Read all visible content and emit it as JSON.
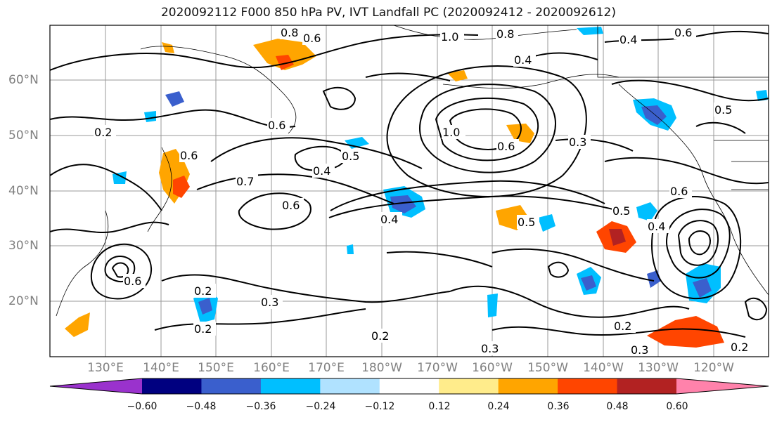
{
  "title": "2020092112 F000 850 hPa PV, IVT Landfall PC (2020092412 - 2020092612)",
  "lat_labels": [
    "60°N",
    "50°N",
    "40°N",
    "30°N",
    "20°N"
  ],
  "lon_labels": [
    "130°E",
    "140°E",
    "150°E",
    "160°E",
    "170°E",
    "180°W",
    "170°W",
    "160°W",
    "150°W",
    "140°W",
    "130°W",
    "120°W"
  ],
  "colorbar": {
    "ticks": [
      "−0.60",
      "−0.48",
      "−0.36",
      "−0.24",
      "−0.12",
      "0.12",
      "0.24",
      "0.36",
      "0.48",
      "0.60"
    ],
    "colors": [
      "#9a32cd",
      "#000080",
      "#3a5fcd",
      "#00bfff",
      "#b0e2ff",
      "#ffffff",
      "#ffec8b",
      "#ffa500",
      "#ff4500",
      "#b22222",
      "#ff82ab"
    ]
  },
  "contour_labels": [
    "0.2",
    "0.3",
    "0.4",
    "0.5",
    "0.6",
    "0.7",
    "0.8",
    "1.0"
  ]
}
